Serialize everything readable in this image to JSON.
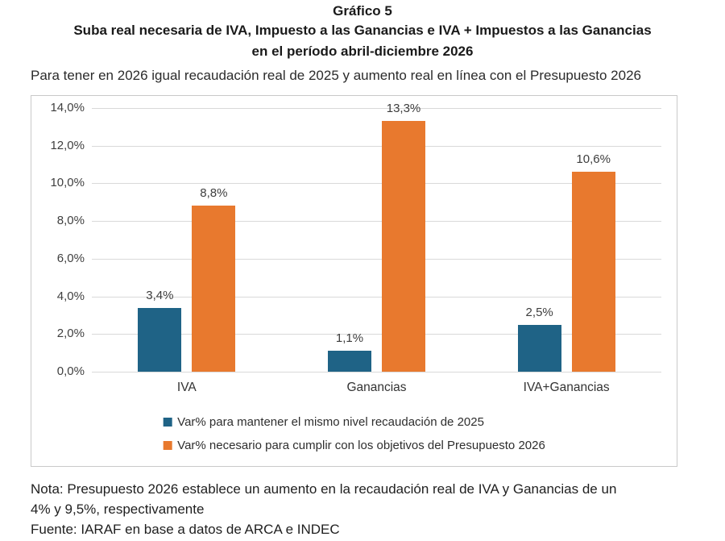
{
  "header": {
    "title": "Gráfico 5",
    "subtitle_line1": "Suba real necesaria de IVA, Impuesto a las Ganancias e IVA + Impuestos a las Ganancias",
    "subtitle_line2": "en el período abril-diciembre 2026",
    "tagline": "Para tener en 2026 igual recaudación real de 2025 y aumento real en línea con el Presupuesto 2026"
  },
  "footer": {
    "note_line1": "Nota: Presupuesto 2026 establece un aumento en la recaudación real de IVA y Ganancias de un",
    "note_line2": "4% y 9,5%, respectivamente",
    "fuente": "Fuente: IARAF en base a datos de ARCA e INDEC"
  },
  "colors": {
    "series_blue": "#1f6386",
    "series_orange": "#e8792e",
    "gridline": "#d9d9d9",
    "chart_border": "#c9c9c9"
  },
  "chart_data": {
    "type": "bar",
    "categories": [
      "IVA",
      "Ganancias",
      "IVA+Ganancias"
    ],
    "series": [
      {
        "name": "Var% para mantener el mismo nivel recaudación de 2025",
        "color": "#1f6386",
        "values": [
          3.4,
          1.1,
          2.5
        ],
        "labels": [
          "3,4%",
          "1,1%",
          "2,5%"
        ]
      },
      {
        "name": "Var% necesario para cumplir con los objetivos del Presupuesto 2026",
        "color": "#e8792e",
        "values": [
          8.8,
          13.3,
          10.6
        ],
        "labels": [
          "8,8%",
          "13,3%",
          "10,6%"
        ]
      }
    ],
    "title": "Gráfico 5",
    "xlabel": "",
    "ylabel": "",
    "ylim": [
      0,
      14
    ],
    "ytick_step": 2,
    "ytick_labels": [
      "0,0%",
      "2,0%",
      "4,0%",
      "6,0%",
      "8,0%",
      "10,0%",
      "12,0%",
      "14,0%"
    ],
    "grid": true,
    "legend_position": "bottom"
  }
}
